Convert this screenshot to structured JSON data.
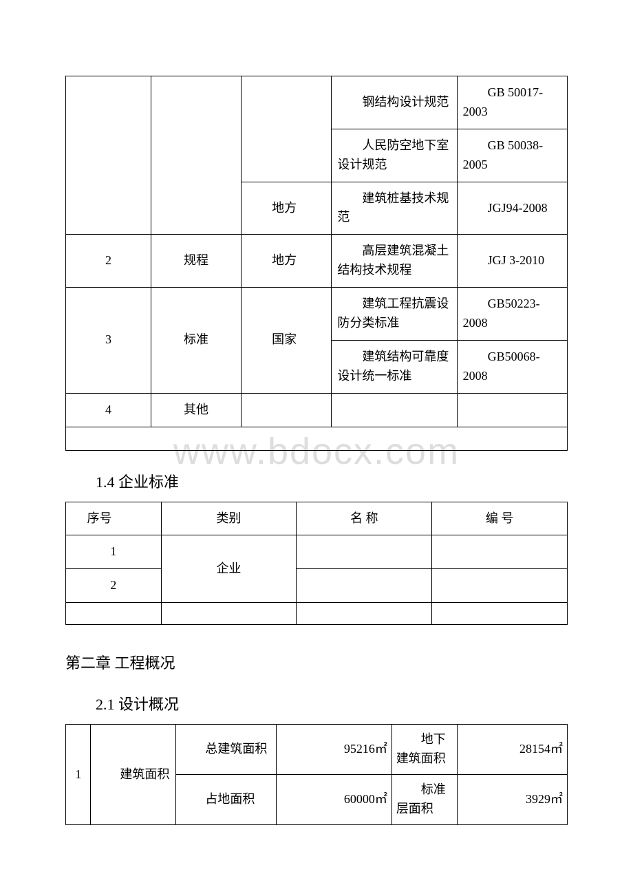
{
  "watermark": "www.bdocx.com",
  "table1": {
    "rows": [
      {
        "c4": "　　钢结构设计规范",
        "c5": "　　GB 50017-2003"
      },
      {
        "c4": "　　人民防空地下室设计规范",
        "c5": "　　GB 50038-2005"
      },
      {
        "c3": "　　地方",
        "c4": "　　建筑桩基技术规范",
        "c5": "　　JGJ94-2008"
      },
      {
        "c1": "2",
        "c2": "规程",
        "c3": "　　地方",
        "c4": "　　高层建筑混凝土结构技术规程",
        "c5": "　　JGJ 3-2010"
      },
      {
        "c1": "3",
        "c2": "标准",
        "c3": "　　国家",
        "c4a": "　　建筑工程抗震设防分类标准",
        "c5a": "　　GB50223-2008",
        "c4b": "　　建筑结构可靠度设计统一标准",
        "c5b": "　　GB50068-2008"
      },
      {
        "c1": "4",
        "c2": "其他"
      }
    ]
  },
  "heading1": "1.4 企业标准",
  "table2": {
    "headers": [
      "　 序号",
      "类别",
      "名 称",
      "编 号"
    ],
    "r1c1": "1",
    "r2c1": "2",
    "r1c2": "企业"
  },
  "chapter2": "第二章 工程概况",
  "heading2": "2.1 设计概况",
  "table3": {
    "c1": "1",
    "c2": "　　建筑面积",
    "r1c3": "　　总建筑面积",
    "r1c4": "95216㎡",
    "r1c5": "　　地下建筑面积",
    "r1c6": "28154㎡",
    "r2c3": "　　占地面积",
    "r2c4": "60000㎡",
    "r2c5": "　　标准层面积",
    "r2c6": "3929㎡"
  }
}
